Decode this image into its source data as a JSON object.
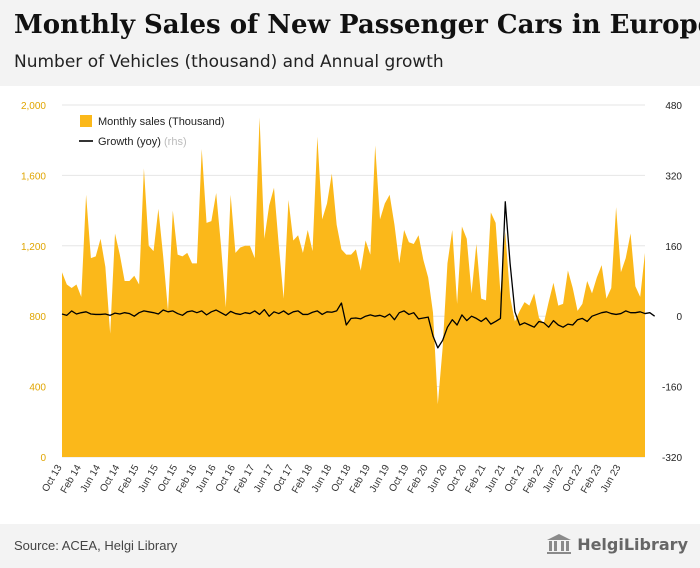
{
  "header": {
    "title": "Monthly Sales of New Passenger Cars in Europe",
    "subtitle": "Number of Vehicles (thousand) and Annual growth"
  },
  "footer": {
    "source": "Source: ACEA, Helgi Library",
    "brand": "HelgiLibrary"
  },
  "colors": {
    "area": "#fbb81a",
    "line": "#000000",
    "axis_text": "#e0a500",
    "rhs_text": "#222222"
  },
  "chart_data": {
    "type": "area",
    "x_start": "2013-10",
    "x_end": "2023-08",
    "x_tick_labels": [
      "Oct 13",
      "Feb 14",
      "Jun 14",
      "Oct 14",
      "Feb 15",
      "Jun 15",
      "Oct 15",
      "Feb 16",
      "Jun 16",
      "Oct 16",
      "Feb 17",
      "Jun 17",
      "Oct 17",
      "Feb 18",
      "Jun 18",
      "Oct 18",
      "Feb 19",
      "Jun 19",
      "Oct 19",
      "Feb 20",
      "Jun 20",
      "Oct 20",
      "Feb 21",
      "Jun 21",
      "Oct 21",
      "Feb 22",
      "Jun 22",
      "Oct 22",
      "Feb 23",
      "Jun 23"
    ],
    "y_left": {
      "min": 0,
      "max": 2000,
      "ticks": [
        "0",
        "400",
        "800",
        "1,200",
        "1,600",
        "2,000"
      ]
    },
    "y_right": {
      "min": -320,
      "max": 480,
      "ticks": [
        "-320",
        "-160",
        "0",
        "160",
        "320",
        "480"
      ]
    },
    "legend": {
      "position": "top-left",
      "entries": [
        {
          "label": "Monthly sales (Thousand)",
          "symbol": "box"
        },
        {
          "label": "Growth (yoy)",
          "suffix": "(rhs)",
          "symbol": "line"
        }
      ]
    },
    "series": [
      {
        "name": "Monthly sales (Thousand)",
        "axis": "left",
        "values": [
          1050,
          980,
          960,
          980,
          910,
          1490,
          1130,
          1140,
          1240,
          1080,
          700,
          1270,
          1150,
          1000,
          1000,
          1030,
          980,
          1640,
          1200,
          1170,
          1410,
          1140,
          830,
          1400,
          1150,
          1140,
          1160,
          1100,
          1100,
          1750,
          1330,
          1340,
          1500,
          1200,
          850,
          1490,
          1160,
          1190,
          1200,
          1200,
          1130,
          1930,
          1240,
          1430,
          1530,
          1200,
          900,
          1460,
          1230,
          1260,
          1160,
          1290,
          1170,
          1820,
          1350,
          1440,
          1610,
          1320,
          1180,
          1150,
          1150,
          1180,
          1060,
          1230,
          1150,
          1770,
          1350,
          1440,
          1490,
          1320,
          1100,
          1290,
          1220,
          1210,
          1260,
          1120,
          1020,
          820,
          300,
          620,
          1100,
          1290,
          870,
          1310,
          1240,
          930,
          1210,
          900,
          890,
          1390,
          1330,
          930,
          1280,
          910,
          770,
          830,
          880,
          860,
          930,
          790,
          760,
          880,
          990,
          860,
          870,
          1060,
          960,
          830,
          870,
          1000,
          930,
          1020,
          1090,
          900,
          960,
          1420,
          1050,
          1130,
          1270,
          970,
          910,
          1160
        ]
      },
      {
        "name": "Growth (yoy)",
        "axis": "right",
        "values": [
          5,
          2,
          12,
          5,
          8,
          10,
          5,
          4,
          4,
          5,
          2,
          7,
          5,
          8,
          6,
          0,
          8,
          12,
          10,
          8,
          5,
          14,
          10,
          12,
          6,
          2,
          10,
          12,
          8,
          12,
          3,
          10,
          14,
          8,
          2,
          11,
          6,
          4,
          8,
          6,
          12,
          4,
          15,
          0,
          10,
          6,
          12,
          4,
          10,
          12,
          4,
          4,
          9,
          12,
          4,
          10,
          9,
          12,
          30,
          -20,
          -5,
          -4,
          -6,
          0,
          3,
          0,
          2,
          -2,
          5,
          -8,
          8,
          12,
          4,
          8,
          -6,
          -4,
          -2,
          -45,
          -72,
          -55,
          -25,
          -8,
          -20,
          3,
          -10,
          0,
          -5,
          -12,
          -4,
          -18,
          -12,
          -5,
          260,
          120,
          10,
          -20,
          -15,
          -20,
          -25,
          -12,
          -15,
          -25,
          -10,
          -20,
          -25,
          -18,
          -20,
          -8,
          -5,
          -12,
          0,
          4,
          8,
          10,
          6,
          4,
          6,
          12,
          8,
          8,
          10,
          6,
          8,
          0
        ]
      }
    ]
  }
}
